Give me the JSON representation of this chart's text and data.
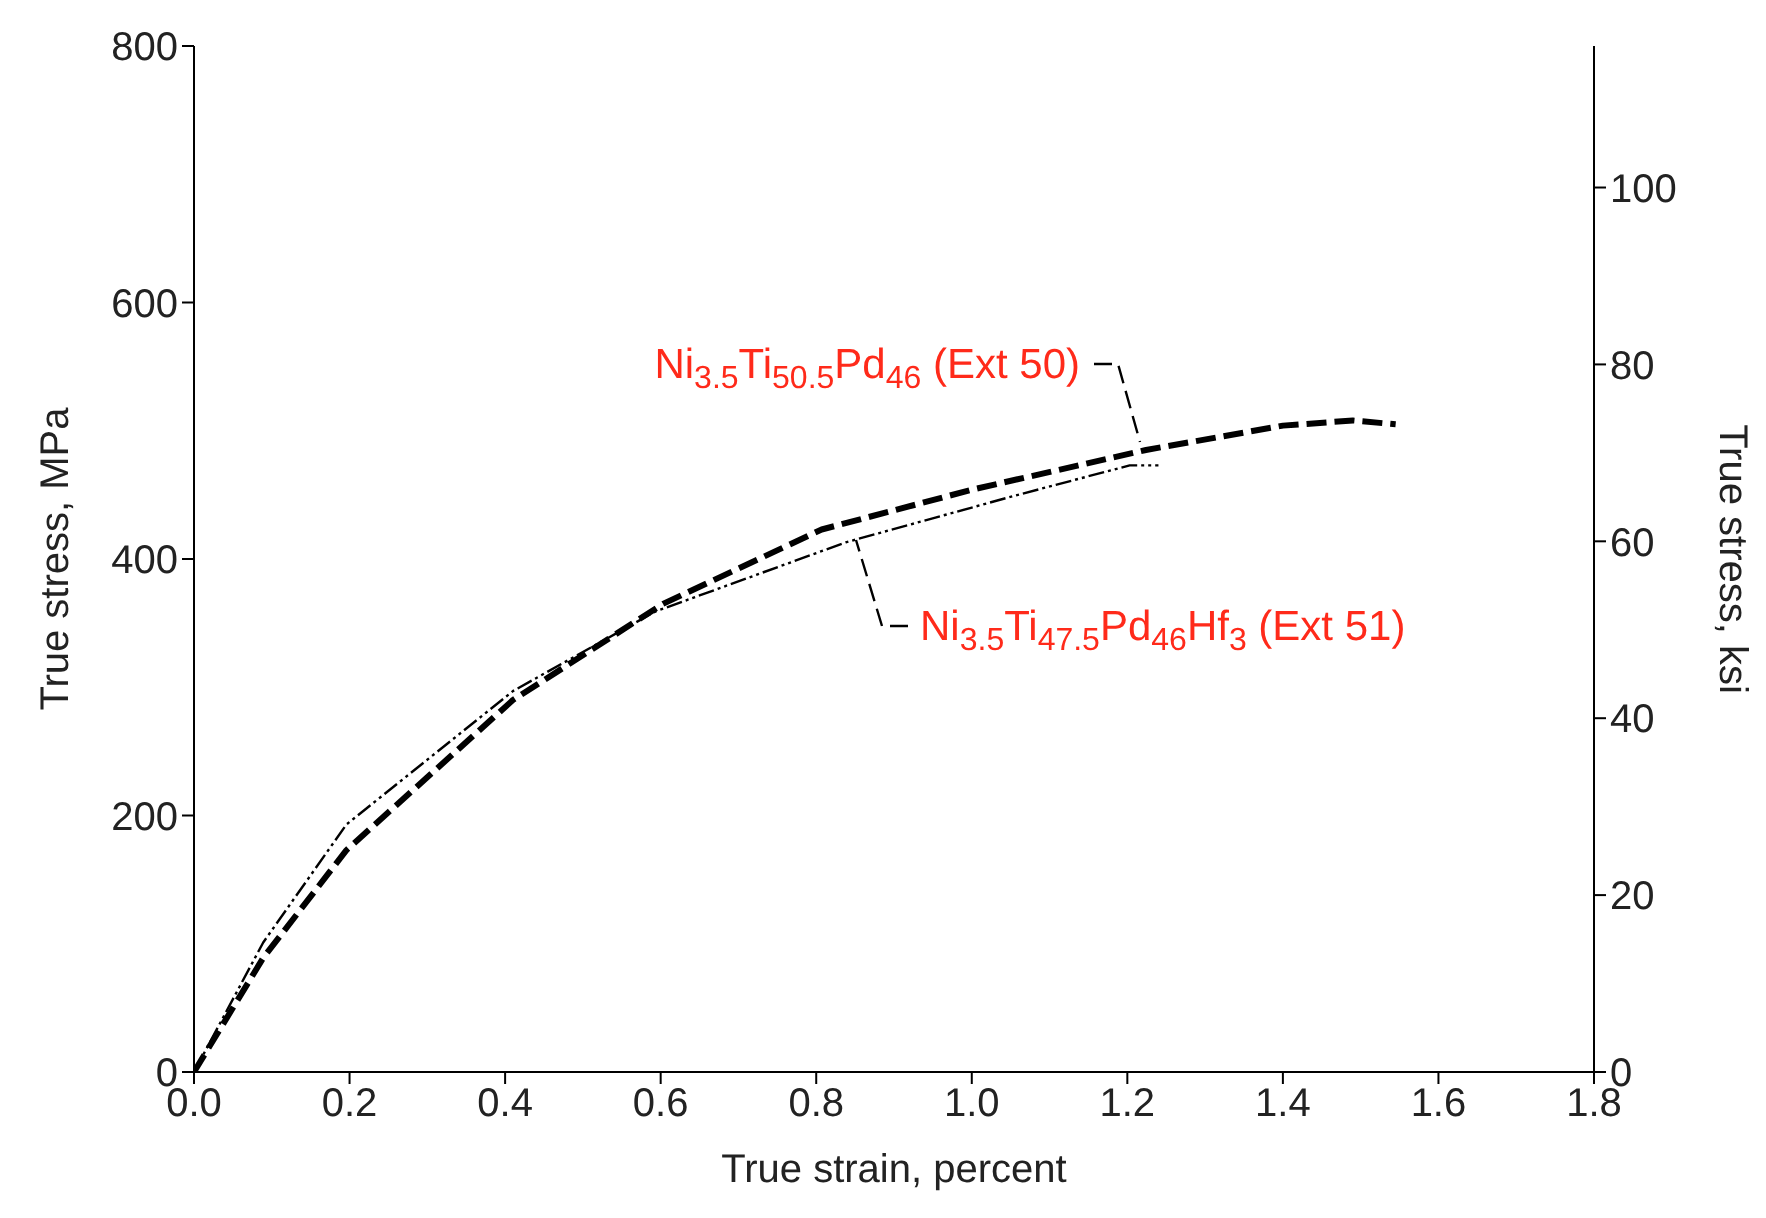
{
  "chart_data": {
    "type": "line",
    "xlabel": "True strain, percent",
    "ylabel": "True stress, MPa",
    "y2label": "True stress, ksi",
    "xlim": [
      0,
      1.8
    ],
    "xticks": [
      {
        "value": 0,
        "label": "0.0"
      },
      {
        "value": 0.2,
        "label": "0.2"
      },
      {
        "value": 0.4,
        "label": "0.4"
      },
      {
        "value": 0.6,
        "label": "0.6"
      },
      {
        "value": 0.8,
        "label": "0.8"
      },
      {
        "value": 1,
        "label": "1.0"
      },
      {
        "value": 1.2,
        "label": "1.2"
      },
      {
        "value": 1.4,
        "label": "1.4"
      },
      {
        "value": 1.6,
        "label": "1.6"
      },
      {
        "value": 1.8,
        "label": "1.8"
      }
    ],
    "ylim": [
      0,
      800
    ],
    "yticks": [
      0,
      200,
      400,
      600,
      800
    ],
    "y2lim": [
      0,
      116
    ],
    "y2ticks": [
      0,
      20,
      40,
      60,
      80,
      100
    ],
    "grid": false,
    "legend": false,
    "marker": "none",
    "series": [
      {
        "name": "Ni$_{3.5}$Ti$_{50.5}$Pd$_{46}$ (Ext 50)",
        "color": "#000000",
        "line_style": "dashed",
        "x": [
          0,
          0.089,
          0.196,
          0.41,
          0.603,
          0.807,
          1.0,
          1.224,
          1.4,
          1.49,
          1.545
        ],
        "values": [
          0,
          89,
          173,
          290,
          365,
          423,
          454,
          485,
          504,
          508,
          505
        ]
      },
      {
        "name": "Ni$_{3.5}$Ti$_{47.5}$Pd$_{46}$Hf$_{3}$ (Ext 51)",
        "color": "#000000",
        "line_style": "dotted",
        "x": [
          0,
          0.089,
          0.196,
          0.41,
          0.593,
          0.838,
          1.053,
          1.203,
          1.24
        ],
        "values": [
          0,
          101,
          193,
          297,
          359,
          413,
          449,
          473,
          473
        ]
      }
    ]
  }
}
